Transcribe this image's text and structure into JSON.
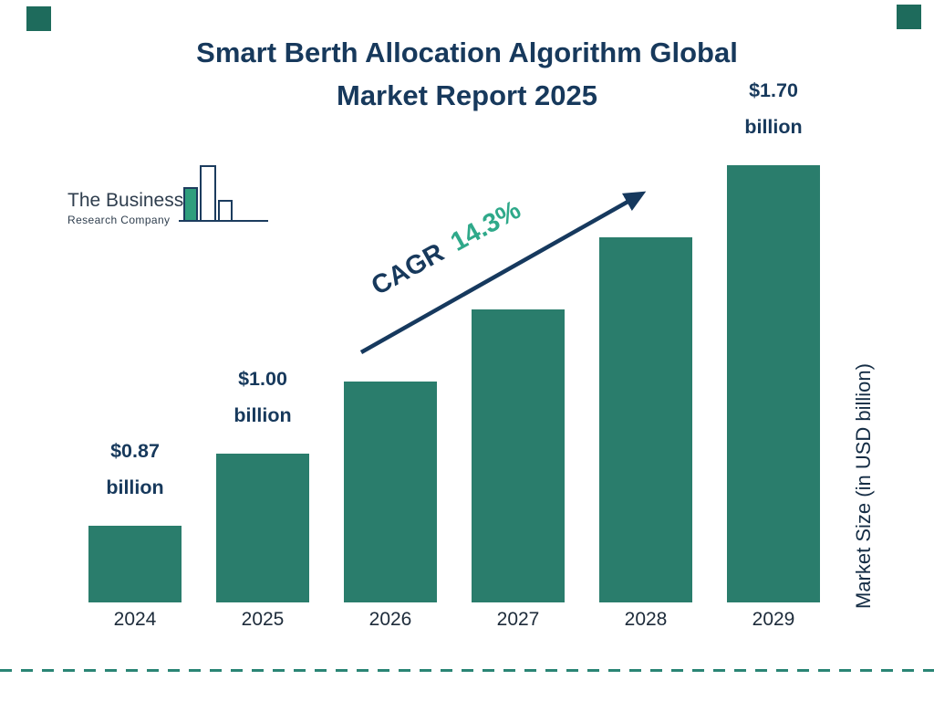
{
  "title": {
    "line1": "Smart Berth Allocation Algorithm Global",
    "line2": "Market Report 2025",
    "color": "#17395c"
  },
  "logo": {
    "name_line1": "The Business",
    "name_line2": "Research Company"
  },
  "annotation": {
    "cagr_label": "CAGR",
    "cagr_value": "14.3%",
    "label_color": "#17395c",
    "value_color": "#2fa98a"
  },
  "right_axis_label": "Market Size (in USD billion)",
  "decorations": {
    "corner_square_color": "#1e6b5c",
    "dashed_line_color": "#2a8575"
  },
  "chart_data": {
    "type": "bar",
    "title": "Smart Berth Allocation Algorithm Global Market Report 2025",
    "categories": [
      "2024",
      "2025",
      "2026",
      "2027",
      "2028",
      "2029"
    ],
    "values": [
      0.87,
      1.0,
      1.14,
      1.31,
      1.49,
      1.7
    ],
    "unit": "USD billion",
    "xlabel": "",
    "ylabel": "Market Size (in USD billion)",
    "cagr_percent": 14.3,
    "bar_color": "#2a7d6c",
    "legend": "none",
    "grid": "off",
    "bar_labels": [
      {
        "amount": "$0.87",
        "unit": "billion"
      },
      {
        "amount": "$1.00",
        "unit": "billion"
      },
      null,
      null,
      null,
      {
        "amount": "$1.70",
        "unit": "billion"
      }
    ]
  }
}
